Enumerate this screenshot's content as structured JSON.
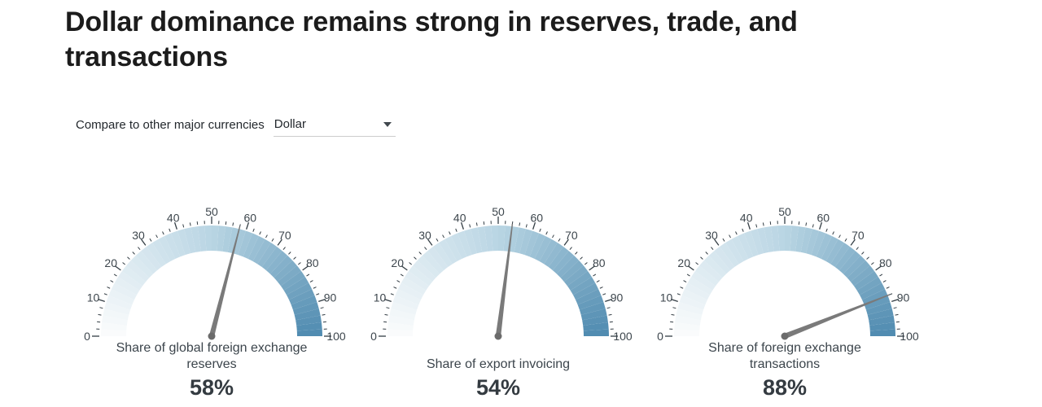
{
  "page": {
    "title": "Dollar dominance remains strong in reserves, trade, and transactions"
  },
  "controls": {
    "label": "Compare to other major currencies",
    "selected": "Dollar",
    "icon": "caret-down-icon"
  },
  "chart_data": {
    "type": "gauge",
    "min": 0,
    "max": 100,
    "major_tick_interval": 10,
    "minor_tick_interval": 2,
    "tick_labels": [
      "0",
      "10",
      "20",
      "30",
      "40",
      "50",
      "60",
      "70",
      "80",
      "90",
      "100"
    ],
    "band_color_stops": [
      [
        0,
        "#fbfcfd"
      ],
      [
        0.5,
        "#b9d5e3"
      ],
      [
        1,
        "#4f8ab0"
      ]
    ],
    "tick_color": "#333d44",
    "label_color": "#3d464d",
    "needle_color": "#7a7a7a",
    "pivot_color": "#6b6b6b",
    "gauges": [
      {
        "label": "Share of global foreign exchange reserves",
        "value": 58,
        "display": "58%"
      },
      {
        "label": "Share of export invoicing",
        "value": 54,
        "display": "54%"
      },
      {
        "label": "Share of foreign exchange transactions",
        "value": 88,
        "display": "88%"
      }
    ]
  }
}
